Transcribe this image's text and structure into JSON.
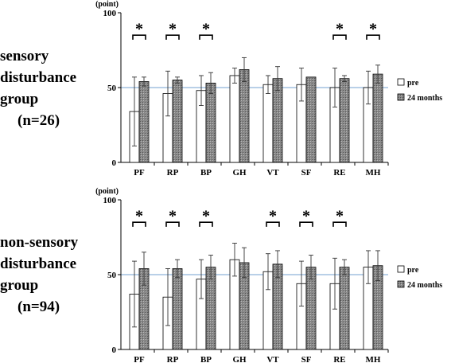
{
  "groups": [
    {
      "label_lines": [
        "sensory",
        "disturbance",
        "group"
      ],
      "n_label": "(n=26)"
    },
    {
      "label_lines": [
        "non-sensory",
        "disturbance",
        "group"
      ],
      "n_label": "(n=94)"
    }
  ],
  "chart_data": [
    {
      "type": "bar",
      "categories": [
        "PF",
        "RP",
        "BP",
        "GH",
        "VT",
        "SF",
        "RE",
        "MH"
      ],
      "ylabel": "(point)",
      "ylim": [
        0,
        100
      ],
      "yticks": [
        0,
        50,
        100
      ],
      "reference_line": 50,
      "series": [
        {
          "name": "pre",
          "values": [
            34,
            46,
            48,
            58,
            52,
            52,
            50,
            50
          ],
          "error": [
            23,
            15,
            10,
            5,
            6,
            11,
            13,
            11
          ]
        },
        {
          "name": "24 months",
          "values": [
            54,
            55,
            53,
            62,
            56,
            57,
            56,
            59
          ],
          "error": [
            3,
            2,
            7,
            8,
            8,
            0,
            2,
            6
          ]
        }
      ],
      "significance": [
        "*",
        "*",
        "*",
        "",
        "",
        "",
        "*",
        "*"
      ],
      "legend_position": "right"
    },
    {
      "type": "bar",
      "categories": [
        "PF",
        "RP",
        "BP",
        "GH",
        "VT",
        "SF",
        "RE",
        "MH"
      ],
      "ylabel": "(point)",
      "ylim": [
        0,
        100
      ],
      "yticks": [
        0,
        50,
        100
      ],
      "reference_line": 50,
      "series": [
        {
          "name": "pre",
          "values": [
            37,
            35,
            47,
            60,
            52,
            44,
            44,
            55
          ],
          "error": [
            22,
            19,
            13,
            11,
            12,
            15,
            17,
            11
          ]
        },
        {
          "name": "24 months",
          "values": [
            54,
            54,
            55,
            58,
            57,
            55,
            55,
            56
          ],
          "error": [
            11,
            6,
            8,
            10,
            9,
            8,
            5,
            10
          ]
        }
      ],
      "significance": [
        "*",
        "*",
        "*",
        "",
        "*",
        "*",
        "*",
        ""
      ],
      "legend_position": "right"
    }
  ],
  "colors": {
    "pre": "#ffffff",
    "24 months": "#7f7f7f",
    "reference_line": "#8fb3d9",
    "axis": "#000000"
  }
}
